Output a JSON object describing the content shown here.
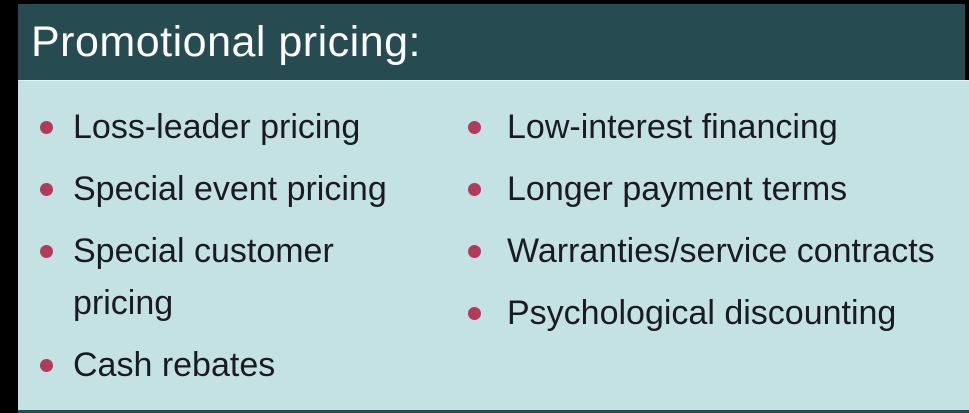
{
  "header": {
    "title": "Promotional pricing:"
  },
  "columns": [
    {
      "items": [
        "Loss-leader pricing",
        "Special event pricing",
        "Special customer pricing",
        "Cash rebates"
      ]
    },
    {
      "items": [
        "Low-interest financing",
        "Longer payment terms",
        "Warranties/service contracts",
        "Psychological discounting"
      ]
    }
  ],
  "colors": {
    "frame": "#000000",
    "header_bg": "#264C51",
    "body_bg": "#C4E2E4",
    "bullet": "#B23A5A",
    "text": "#1A1A22",
    "title_text": "#FCFCFC"
  }
}
